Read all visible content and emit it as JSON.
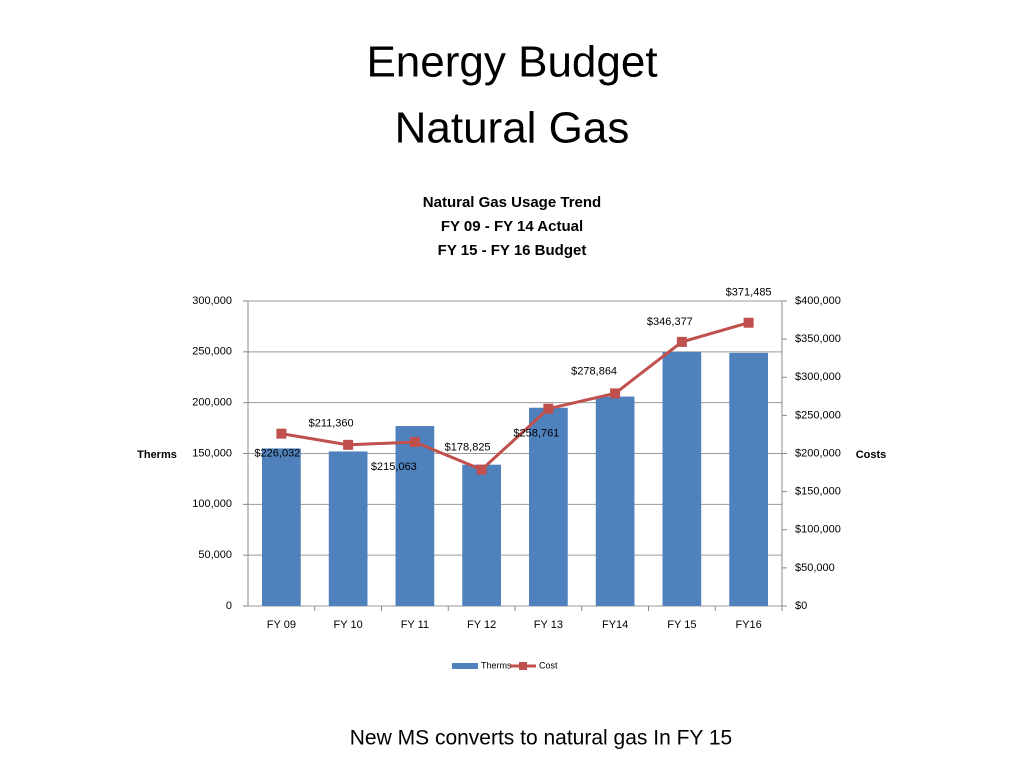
{
  "slide": {
    "title": [
      "Energy Budget",
      "Natural Gas"
    ],
    "footnote": "New MS converts to natural gas In FY 15"
  },
  "chart_data": {
    "type": "bar-line",
    "title": [
      "Natural Gas Usage Trend",
      "FY 09 - FY 14 Actual",
      "FY 15 - FY 16 Budget"
    ],
    "ylabel": "Therms",
    "y2label": "Costs",
    "categories": [
      "FY 09",
      "FY 10",
      "FY 11",
      "FY 12",
      "FY 13",
      "FY14",
      "FY 15",
      "FY16"
    ],
    "series": [
      {
        "name": "Therms",
        "type": "bar",
        "color": "#4f81bd",
        "values": [
          155000,
          152000,
          177000,
          139000,
          195000,
          206000,
          250000,
          249000
        ]
      },
      {
        "name": "Cost",
        "type": "line",
        "axis": "y2",
        "color": "#c0504d",
        "values": [
          226032,
          211360,
          215063,
          178825,
          258761,
          278864,
          346377,
          371485
        ],
        "value_labels": [
          "$226,032",
          "$211,360",
          "$215,063",
          "$178,825",
          "$258,761",
          "$278,864",
          "$346,377",
          "$371,485"
        ]
      }
    ],
    "ylim": [
      0,
      300000
    ],
    "yticks": [
      0,
      {
        "value": 50000,
        "label": "50,000"
      },
      {
        "value": 100000,
        "label": "100,000"
      },
      {
        "value": 150000,
        "label": "150,000"
      },
      {
        "value": 200000,
        "label": "200,000"
      },
      {
        "value": 250000,
        "label": "250,000"
      },
      {
        "value": 300000,
        "label": "300,000"
      }
    ],
    "y2lim": [
      0,
      400000
    ],
    "y2ticks": [
      {
        "value": 0,
        "label": "$0"
      },
      {
        "value": 50000,
        "label": "$50,000"
      },
      {
        "value": 100000,
        "label": "$100,000"
      },
      {
        "value": 150000,
        "label": "$150,000"
      },
      {
        "value": 200000,
        "label": "$200,000"
      },
      {
        "value": 250000,
        "label": "$250,000"
      },
      {
        "value": 300000,
        "label": "$300,000"
      },
      {
        "value": 350000,
        "label": "$350,000"
      },
      {
        "value": 400000,
        "label": "$400,000"
      }
    ],
    "grid": true,
    "legend": "bottom"
  }
}
